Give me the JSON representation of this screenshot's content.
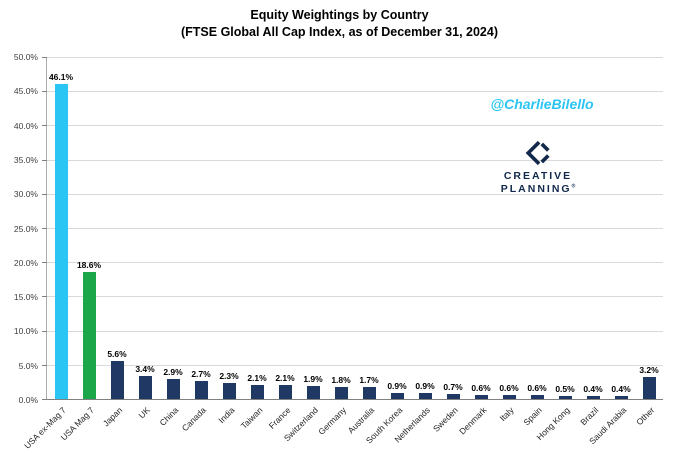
{
  "title": {
    "line1": "Equity Weightings by Country",
    "line2": "(FTSE Global All Cap Index, as of December 31, 2024)"
  },
  "watermark": "@CharlieBilello",
  "logo": {
    "line1": "CREATIVE",
    "line2": "PLANNING",
    "mark": "®"
  },
  "colors": {
    "watermark_cyan": "#2bc5f4",
    "logo_navy": "#12294b",
    "gridline": "#d9d9d9",
    "axis_text": "#404040"
  },
  "chart_data": {
    "type": "bar",
    "title": "Equity Weightings by Country (FTSE Global All Cap Index, as of December 31, 2024)",
    "categories": [
      "USA ex-Mag 7",
      "USA Mag 7",
      "Japan",
      "UK",
      "China",
      "Canada",
      "India",
      "Taiwan",
      "France",
      "Switzerland",
      "Germany",
      "Australia",
      "South Korea",
      "Netherlands",
      "Sweden",
      "Denmark",
      "Italy",
      "Spain",
      "Hong Kong",
      "Brazil",
      "Saudi Arabia",
      "Other"
    ],
    "values": [
      46.1,
      18.6,
      5.6,
      3.4,
      2.9,
      2.7,
      2.3,
      2.1,
      2.1,
      1.9,
      1.8,
      1.7,
      0.9,
      0.9,
      0.7,
      0.6,
      0.6,
      0.6,
      0.5,
      0.4,
      0.4,
      3.2
    ],
    "value_label_format": "percent_1dp",
    "ylim": [
      0,
      50
    ],
    "ytick_step": 5,
    "ytick_format": "percent_1dp",
    "grid": true,
    "legend": "none",
    "bar_colors": {
      "USA ex-Mag 7": "#2bc5f4",
      "USA Mag 7": "#1ca64a",
      "default": "#1f3864"
    }
  }
}
